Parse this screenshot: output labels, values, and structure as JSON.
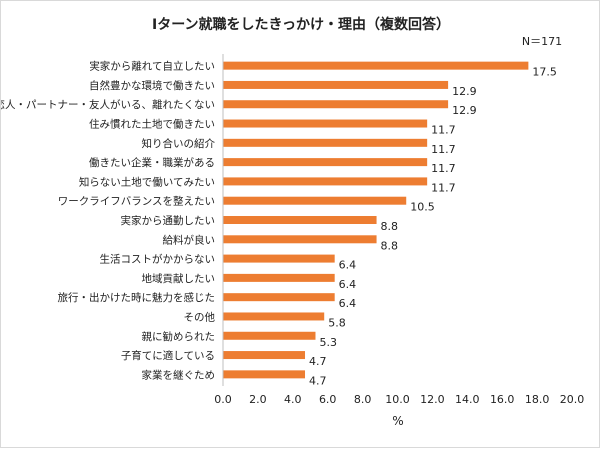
{
  "chart_data": {
    "type": "bar",
    "orientation": "horizontal",
    "title": "Iターン就職をしたきっかけ・理由（複数回答）",
    "note": "N＝171",
    "xlabel": "%",
    "xlim": [
      0,
      20
    ],
    "xticks": [
      "0.0",
      "2.0",
      "4.0",
      "6.0",
      "8.0",
      "10.0",
      "12.0",
      "14.0",
      "16.0",
      "18.0",
      "20.0"
    ],
    "categories": [
      "実家から離れて自立したい",
      "自然豊かな環境で働きたい",
      "恋人・パートナー・友人がいる、離れたくない",
      "住み慣れた土地で働きたい",
      "知り合いの紹介",
      "働きたい企業・職業がある",
      "知らない土地で働いてみたい",
      "ワークライフバランスを整えたい",
      "実家から通勤したい",
      "給料が良い",
      "生活コストがかからない",
      "地域貢献したい",
      "旅行・出かけた時に魅力を感じた",
      "その他",
      "親に勧められた",
      "子育てに適している",
      "家業を継ぐため"
    ],
    "values": [
      17.5,
      12.9,
      12.9,
      11.7,
      11.7,
      11.7,
      11.7,
      10.5,
      8.8,
      8.8,
      6.4,
      6.4,
      6.4,
      5.8,
      5.3,
      4.7,
      4.7
    ],
    "value_labels": [
      "17.5",
      "12.9",
      "12.9",
      "11.7",
      "11.7",
      "11.7",
      "11.7",
      "10.5",
      "8.8",
      "8.8",
      "6.4",
      "6.4",
      "6.4",
      "5.8",
      "5.3",
      "4.7",
      "4.7"
    ],
    "bar_color": "#ED7D31",
    "grid": false
  }
}
